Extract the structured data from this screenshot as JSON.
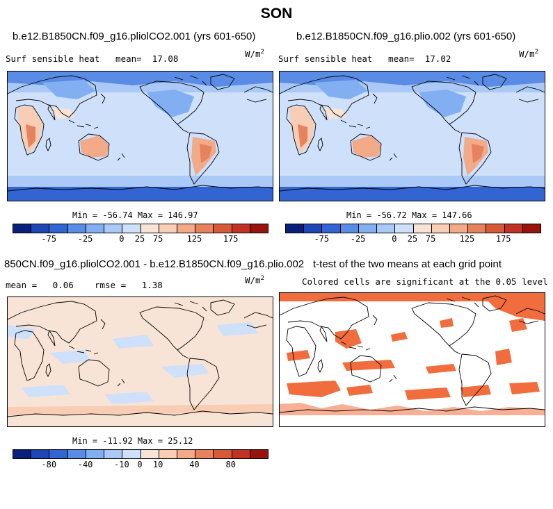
{
  "title": "SON",
  "panels": [
    {
      "title": "b.e12.B1850CN.f09_g16.pliolCO2.001 (yrs 601-650)",
      "variable": "Surf sensible heat",
      "stat_label": "mean=",
      "stat_value": "17.08",
      "units_base": "W/m",
      "units_exp": "2",
      "minmax": "Min = -56.74 Max = 146.97"
    },
    {
      "title": "b.e12.B1850CN.f09_g16.plio.002 (yrs 601-650)",
      "variable": "Surf sensible heat",
      "stat_label": "mean=",
      "stat_value": "17.02",
      "units_base": "W/m",
      "units_exp": "2",
      "minmax": "Min = -56.72 Max = 147.66"
    },
    {
      "title": "850CN.f09_g16.pliolCO2.001 - b.e12.B1850CN.f09_g16.plio.002",
      "mean_label": "mean =",
      "mean_value": "0.06",
      "rmse_label": "rmse =",
      "rmse_value": "1.38",
      "units_base": "W/m",
      "units_exp": "2",
      "minmax": "Min = -11.92 Max = 25.12"
    },
    {
      "title": "t-test of the two means at each grid point",
      "subtitle": "Colored cells are significant at the 0.05 level"
    }
  ],
  "colorbar_main": {
    "colors": [
      "#08207a",
      "#1e46b4",
      "#3264d2",
      "#5a8ce6",
      "#82aff2",
      "#aac9f6",
      "#cfe0fa",
      "#f8e4d6",
      "#f8cdb4",
      "#f2aa88",
      "#e6825e",
      "#d65a3a",
      "#c03224",
      "#96140c"
    ],
    "ticks": [
      "-75",
      "-25",
      "0",
      "25",
      "75",
      "125",
      "175"
    ]
  },
  "colorbar_diff": {
    "colors": [
      "#08207a",
      "#1e46b4",
      "#3264d2",
      "#5a8ce6",
      "#82aff2",
      "#aac9f6",
      "#cfe0fa",
      "#f8e4d6",
      "#f8cdb4",
      "#f2aa88",
      "#e6825e",
      "#d65a3a",
      "#c03224",
      "#96140c"
    ],
    "ticks": [
      "-80",
      "-40",
      "-10",
      "0",
      "10",
      "40",
      "80"
    ]
  },
  "map_colors": {
    "ocean": "#cfe0fa",
    "ocean_mid": "#aac9f6",
    "cold": "#5a8ce6",
    "very_cold": "#3264d2",
    "warm": "#f8cdb4",
    "hot": "#e6825e",
    "diff_bg": "#f8e4d6",
    "diff_neg": "#cfe0fa",
    "signif": "#f26d3d"
  },
  "chart_data": [
    {
      "type": "heatmap",
      "title": "b.e12.B1850CN.f09_g16.pliolCO2.001 (yrs 601-650)",
      "variable": "Surf sensible heat",
      "units": "W/m2",
      "mean": 17.08,
      "min": -56.74,
      "max": 146.97,
      "colorbar_levels": [
        -75,
        -25,
        0,
        25,
        75,
        125,
        175
      ]
    },
    {
      "type": "heatmap",
      "title": "b.e12.B1850CN.f09_g16.plio.002 (yrs 601-650)",
      "variable": "Surf sensible heat",
      "units": "W/m2",
      "mean": 17.02,
      "min": -56.72,
      "max": 147.66,
      "colorbar_levels": [
        -75,
        -25,
        0,
        25,
        75,
        125,
        175
      ]
    },
    {
      "type": "heatmap",
      "title": "850CN.f09_g16.pliolCO2.001 - b.e12.B1850CN.f09_g16.plio.002",
      "units": "W/m2",
      "mean": 0.06,
      "rmse": 1.38,
      "min": -11.92,
      "max": 25.12,
      "colorbar_levels": [
        -80,
        -40,
        -10,
        0,
        10,
        40,
        80
      ]
    },
    {
      "type": "heatmap",
      "title": "t-test of the two means at each grid point",
      "subtitle": "Colored cells are significant at the 0.05 level"
    }
  ]
}
